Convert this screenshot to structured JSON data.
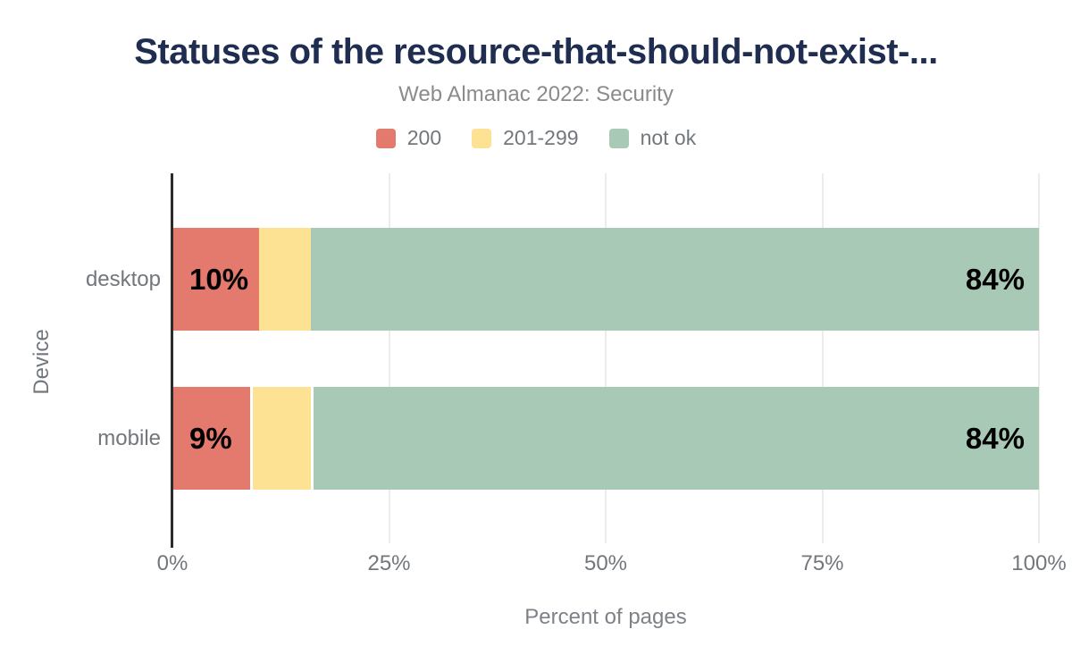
{
  "header": {
    "title": "Statuses of the resource-that-should-not-exist-...",
    "subtitle": "Web Almanac 2022: Security"
  },
  "chart_data": {
    "type": "bar",
    "orientation": "horizontal-stacked",
    "title": "Statuses of the resource-that-should-not-exist-...",
    "subtitle": "Web Almanac 2022: Security",
    "categories": [
      "desktop",
      "mobile"
    ],
    "series": [
      {
        "name": "200",
        "color": "#e4796d",
        "values": [
          10,
          9
        ],
        "labels": [
          "10%",
          "9%"
        ]
      },
      {
        "name": "201-299",
        "color": "#fde293",
        "values": [
          6,
          7
        ],
        "labels": [
          "",
          ""
        ]
      },
      {
        "name": "not ok",
        "color": "#a7c9b6",
        "values": [
          84,
          84
        ],
        "labels": [
          "84%",
          "84%"
        ]
      }
    ],
    "xlabel": "Percent of pages",
    "ylabel": "Device",
    "xlim": [
      0,
      100
    ],
    "x_ticks": [
      {
        "value": 0,
        "label": "0%"
      },
      {
        "value": 25,
        "label": "25%"
      },
      {
        "value": 50,
        "label": "50%"
      },
      {
        "value": 75,
        "label": "75%"
      },
      {
        "value": 100,
        "label": "100%"
      }
    ],
    "grid": "vertical",
    "legend_position": "top-center",
    "colors": {
      "title": "#1e2d50",
      "subtitle": "#8b8b8b",
      "axis_text": "#72777d",
      "gridline": "#ececec",
      "axis_line": "#2b2b2b",
      "bar_label": "#000000"
    }
  }
}
